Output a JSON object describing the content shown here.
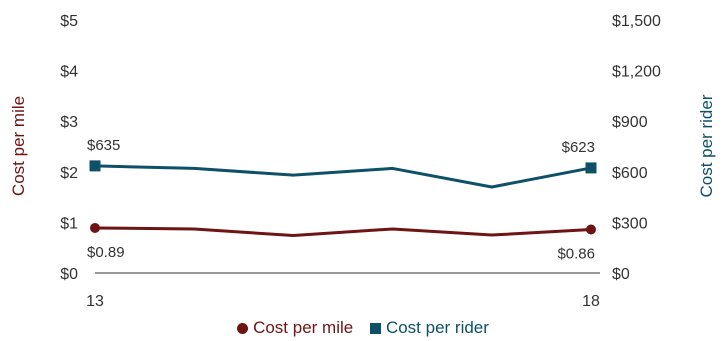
{
  "chart_data": {
    "type": "line",
    "title": "",
    "x": [
      13,
      14,
      15,
      16,
      17,
      18
    ],
    "x_tick_labels": [
      "13",
      "18"
    ],
    "left_axis": {
      "label": "Cost per mile",
      "ylim": [
        0,
        5
      ],
      "ticks": [
        "$0",
        "$1",
        "$2",
        "$3",
        "$4",
        "$5"
      ],
      "color": "#6e1414"
    },
    "right_axis": {
      "label": "Cost per rider",
      "ylim": [
        0,
        1500
      ],
      "ticks": [
        "$0",
        "$300",
        "$600",
        "$900",
        "$1,200",
        "$1,500"
      ],
      "color": "#0e5068"
    },
    "series": [
      {
        "name": "Cost per mile",
        "axis": "left",
        "marker": "circle",
        "color": "#6e1414",
        "values": [
          0.89,
          0.87,
          0.74,
          0.87,
          0.75,
          0.86
        ],
        "labels": [
          {
            "index": 0,
            "text": "$0.89"
          },
          {
            "index": 5,
            "text": "$0.86"
          }
        ]
      },
      {
        "name": "Cost per rider",
        "axis": "right",
        "marker": "square",
        "color": "#0e5068",
        "values": [
          635,
          620,
          580,
          620,
          510,
          623
        ],
        "labels": [
          {
            "index": 0,
            "text": "$635"
          },
          {
            "index": 5,
            "text": "$623"
          }
        ]
      }
    ],
    "legend": {
      "position": "bottom",
      "items": [
        "Cost per mile",
        "Cost per rider"
      ]
    },
    "grid": false
  }
}
